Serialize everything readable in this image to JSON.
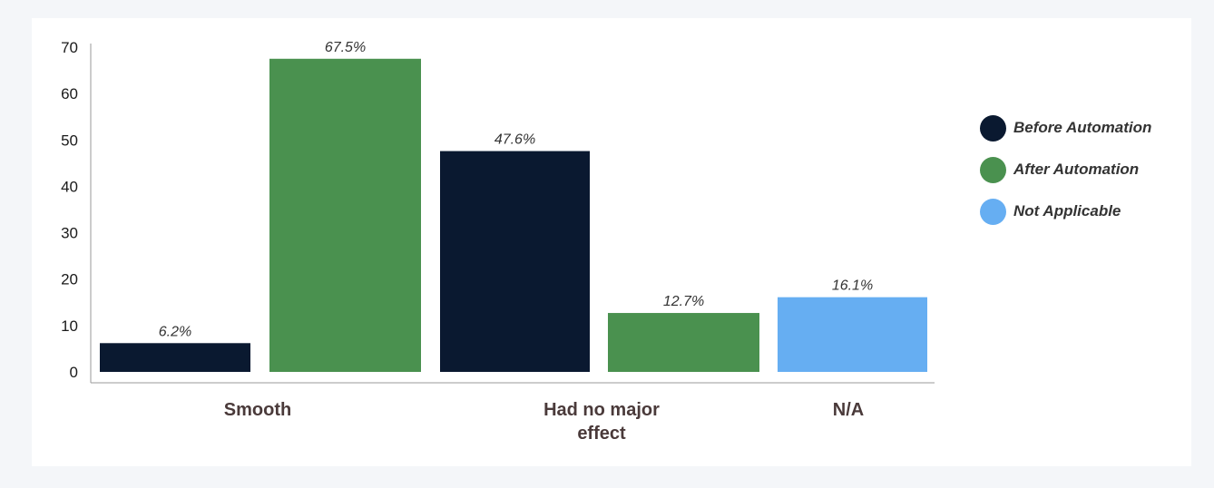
{
  "chart_data": {
    "type": "bar",
    "categories": [
      "Smooth",
      "Had no major effect",
      "N/A"
    ],
    "category_lines": [
      [
        "Smooth"
      ],
      [
        "Had no major",
        "effect"
      ],
      [
        "N/A"
      ]
    ],
    "series": [
      {
        "name": "Before Automation",
        "color": "#0a1930"
      },
      {
        "name": "After Automation",
        "color": "#4a914f"
      },
      {
        "name": "Not Applicable",
        "color": "#66aef2"
      }
    ],
    "bars": [
      {
        "category": "Smooth",
        "series": "Before Automation",
        "value": 6.2,
        "label": "6.2%"
      },
      {
        "category": "Smooth",
        "series": "After Automation",
        "value": 67.5,
        "label": "67.5%"
      },
      {
        "category": "Had no major effect",
        "series": "Before Automation",
        "value": 47.6,
        "label": "47.6%"
      },
      {
        "category": "Had no major effect",
        "series": "After Automation",
        "value": 12.7,
        "label": "12.7%"
      },
      {
        "category": "N/A",
        "series": "Not Applicable",
        "value": 16.1,
        "label": "16.1%"
      }
    ],
    "yticks": [
      "0",
      "10",
      "20",
      "30",
      "40",
      "50",
      "60",
      "70"
    ],
    "ylim": [
      0,
      70
    ],
    "grid": false,
    "legend_position": "right"
  }
}
